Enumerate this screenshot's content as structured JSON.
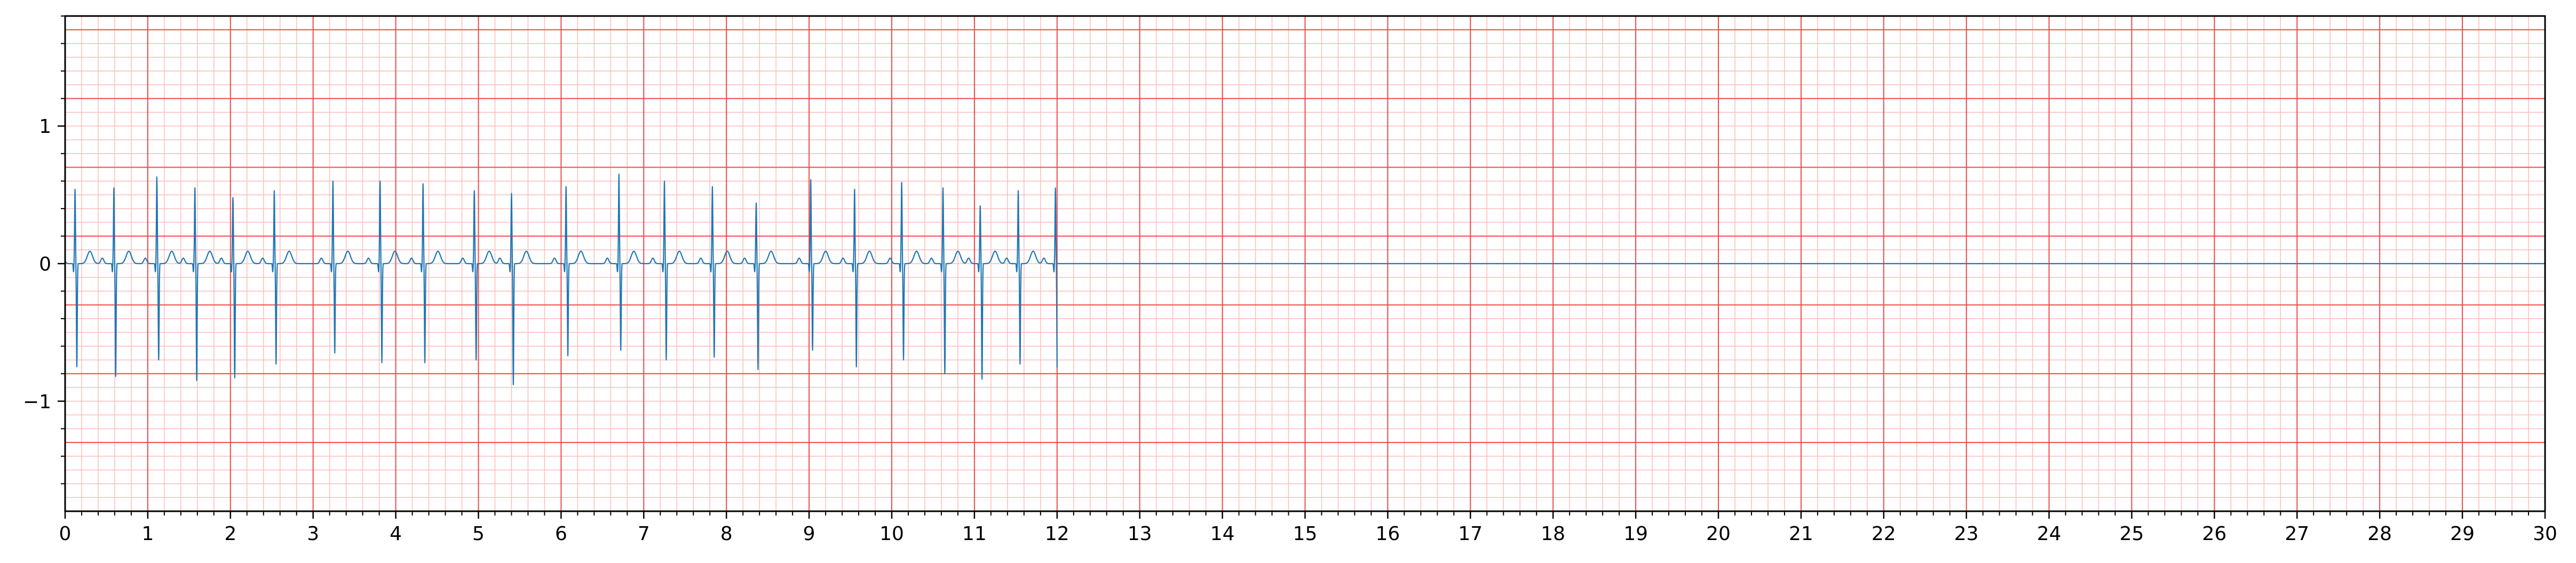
{
  "chart_data": {
    "type": "line",
    "title": "",
    "xlabel": "",
    "ylabel": "",
    "xlim": [
      0,
      30
    ],
    "ylim": [
      -1.8,
      1.8
    ],
    "x_ticks": [
      "0",
      "1",
      "2",
      "3",
      "4",
      "5",
      "6",
      "7",
      "8",
      "9",
      "10",
      "11",
      "12",
      "13",
      "14",
      "15",
      "16",
      "17",
      "18",
      "19",
      "20",
      "21",
      "22",
      "23",
      "24",
      "25",
      "26",
      "27",
      "28",
      "29",
      "30"
    ],
    "y_ticks": [
      {
        "value": 1,
        "label": "1"
      },
      {
        "value": 0,
        "label": "0"
      },
      {
        "value": -1,
        "label": "−1"
      }
    ],
    "grid": {
      "major_x": 1,
      "minor_x": 0.2,
      "major_y": 0.5,
      "minor_y": 0.1,
      "major_color": "#f04a4a",
      "minor_color": "#ffbcbc"
    },
    "signal_end": 12.0,
    "trace_color": "#1f77b4",
    "beats": [
      {
        "t": 0.12,
        "r": 0.54,
        "s": -0.75
      },
      {
        "t": 0.59,
        "r": 0.55,
        "s": -0.82
      },
      {
        "t": 1.11,
        "r": 0.63,
        "s": -0.7
      },
      {
        "t": 1.57,
        "r": 0.55,
        "s": -0.85
      },
      {
        "t": 2.03,
        "r": 0.48,
        "s": -0.83
      },
      {
        "t": 2.53,
        "r": 0.53,
        "s": -0.73
      },
      {
        "t": 3.24,
        "r": 0.6,
        "s": -0.65
      },
      {
        "t": 3.81,
        "r": 0.6,
        "s": -0.72
      },
      {
        "t": 4.33,
        "r": 0.58,
        "s": -0.72
      },
      {
        "t": 4.95,
        "r": 0.53,
        "s": -0.7
      },
      {
        "t": 5.4,
        "r": 0.51,
        "s": -0.88
      },
      {
        "t": 6.06,
        "r": 0.56,
        "s": -0.67
      },
      {
        "t": 6.7,
        "r": 0.65,
        "s": -0.63
      },
      {
        "t": 7.25,
        "r": 0.6,
        "s": -0.7
      },
      {
        "t": 7.83,
        "r": 0.56,
        "s": -0.68
      },
      {
        "t": 8.36,
        "r": 0.44,
        "s": -0.77
      },
      {
        "t": 9.02,
        "r": 0.61,
        "s": -0.63
      },
      {
        "t": 9.55,
        "r": 0.54,
        "s": -0.75
      },
      {
        "t": 10.12,
        "r": 0.59,
        "s": -0.7
      },
      {
        "t": 10.62,
        "r": 0.55,
        "s": -0.8
      },
      {
        "t": 11.07,
        "r": 0.42,
        "s": -0.84
      },
      {
        "t": 11.53,
        "r": 0.53,
        "s": -0.73
      },
      {
        "t": 11.98,
        "r": 0.55,
        "s": -0.82
      }
    ]
  }
}
